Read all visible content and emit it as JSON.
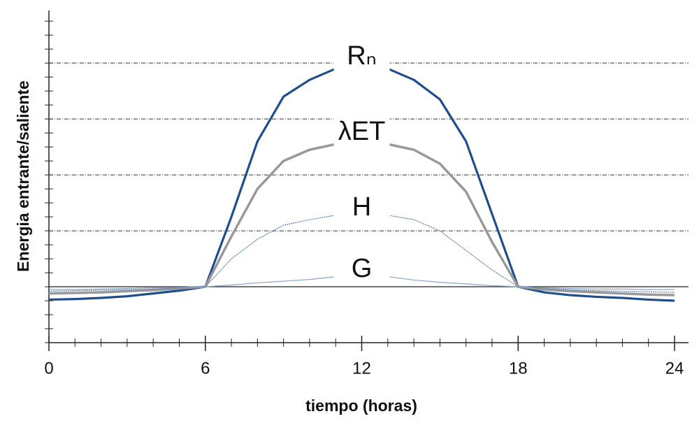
{
  "chart_data": {
    "type": "line",
    "x_label": "tiempo (horas)",
    "y_label": "Energia entrante/saliente",
    "x": [
      0,
      1,
      2,
      3,
      4,
      5,
      6,
      7,
      8,
      9,
      10,
      11,
      12,
      13,
      14,
      15,
      16,
      17,
      18,
      19,
      20,
      21,
      22,
      23,
      24
    ],
    "xlim": [
      0,
      24
    ],
    "xticks": [
      0,
      6,
      12,
      18,
      24
    ],
    "ylim": [
      -1,
      4.94
    ],
    "ygrid": [
      1,
      2,
      3,
      4
    ],
    "zero_line": 0,
    "series": [
      {
        "name": "Rₙ",
        "color": "#1f4e8c",
        "values": [
          -0.23,
          -0.22,
          -0.2,
          -0.17,
          -0.12,
          -0.07,
          0,
          1.25,
          2.6,
          3.4,
          3.7,
          3.9,
          4.0,
          3.9,
          3.7,
          3.35,
          2.6,
          1.3,
          0,
          -0.1,
          -0.15,
          -0.18,
          -0.2,
          -0.23,
          -0.25
        ]
      },
      {
        "name": "λET",
        "color": "#999999",
        "values": [
          -0.12,
          -0.11,
          -0.1,
          -0.08,
          -0.06,
          -0.03,
          0,
          0.9,
          1.75,
          2.25,
          2.45,
          2.55,
          2.65,
          2.55,
          2.45,
          2.2,
          1.7,
          0.8,
          0,
          -0.05,
          -0.08,
          -0.1,
          -0.12,
          -0.14,
          -0.15
        ]
      },
      {
        "name": "H",
        "color": "#5a7fb5",
        "values": [
          -0.08,
          -0.07,
          -0.06,
          -0.05,
          -0.04,
          -0.02,
          0,
          0.5,
          0.85,
          1.1,
          1.2,
          1.28,
          1.3,
          1.28,
          1.2,
          1.0,
          0.65,
          0.3,
          0,
          -0.03,
          -0.05,
          -0.07,
          -0.08,
          -0.09,
          -0.1
        ]
      },
      {
        "name": "G",
        "color": "#8aa4c8",
        "values": [
          -0.05,
          -0.05,
          -0.04,
          -0.03,
          -0.02,
          -0.01,
          0,
          0.03,
          0.07,
          0.1,
          0.13,
          0.18,
          0.2,
          0.18,
          0.12,
          0.08,
          0.05,
          0.02,
          0,
          -0.02,
          -0.03,
          -0.04,
          -0.04,
          -0.05,
          -0.05
        ]
      }
    ]
  }
}
